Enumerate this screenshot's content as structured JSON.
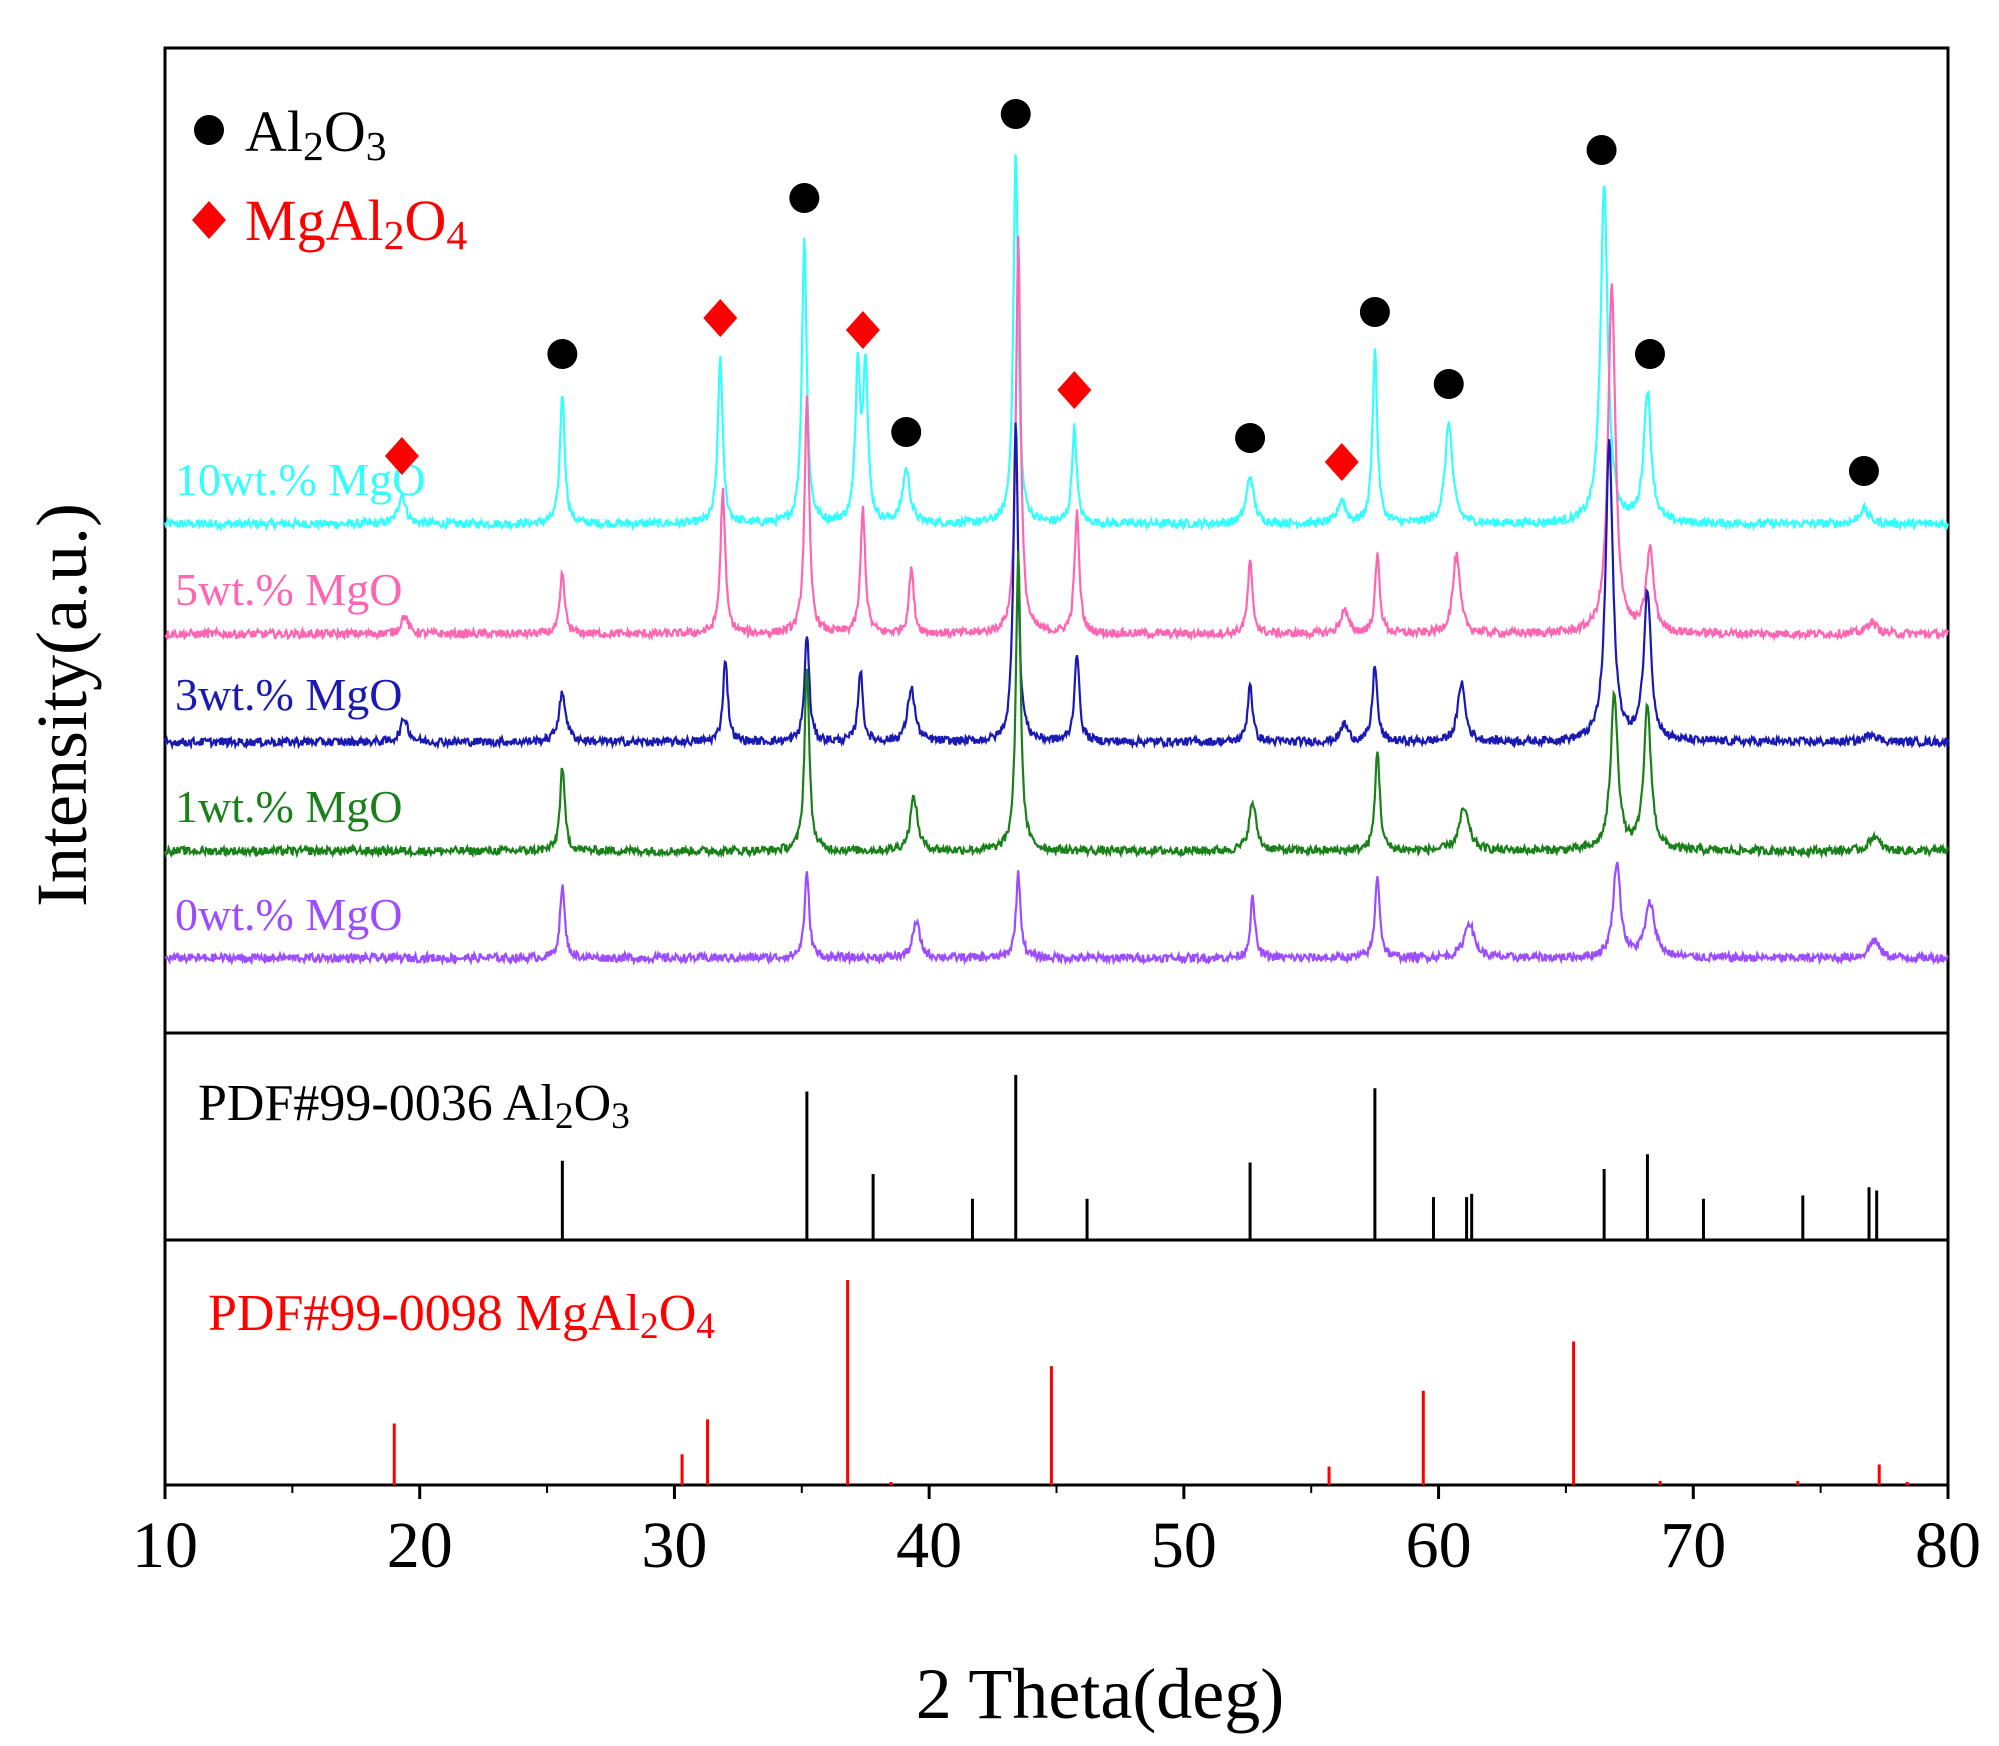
{
  "chart_data": {
    "type": "line",
    "xlabel": "2 Theta(deg)",
    "ylabel": "Intensity(a.u.)",
    "xlim": [
      10,
      80
    ],
    "xticks": [
      10,
      20,
      30,
      40,
      50,
      60,
      70,
      80
    ],
    "legend": [
      {
        "marker": "circle",
        "sub": [
          "Al",
          "2",
          "O",
          "3"
        ],
        "color": "#000000"
      },
      {
        "marker": "diamond",
        "sub": [
          "MgAl",
          "2",
          "O",
          "4"
        ],
        "color": "#ff0000"
      }
    ],
    "series": [
      {
        "name": "10wt.% MgO",
        "color": "#33ffff",
        "peaks": [
          [
            19.3,
            0.5
          ],
          [
            25.6,
            2.2
          ],
          [
            31.8,
            2.8
          ],
          [
            35.1,
            4.8
          ],
          [
            37.2,
            2.6
          ],
          [
            37.5,
            2.6
          ],
          [
            39.1,
            0.9
          ],
          [
            43.4,
            6.2
          ],
          [
            45.7,
            1.6
          ],
          [
            52.6,
            0.8
          ],
          [
            56.2,
            0.4
          ],
          [
            57.5,
            2.9
          ],
          [
            60.4,
            1.7
          ],
          [
            66.5,
            5.6
          ],
          [
            68.2,
            2.2
          ],
          [
            76.7,
            0.25
          ]
        ]
      },
      {
        "name": "5wt.% MgO",
        "color": "#ff66b2",
        "peaks": [
          [
            19.4,
            0.3
          ],
          [
            25.6,
            1.0
          ],
          [
            31.9,
            2.4
          ],
          [
            35.2,
            3.9
          ],
          [
            37.4,
            2.1
          ],
          [
            39.3,
            1.1
          ],
          [
            43.5,
            6.6
          ],
          [
            45.8,
            2.0
          ],
          [
            52.6,
            1.2
          ],
          [
            56.3,
            0.4
          ],
          [
            57.6,
            1.3
          ],
          [
            60.7,
            1.3
          ],
          [
            66.8,
            5.8
          ],
          [
            68.3,
            1.4
          ],
          [
            77.0,
            0.2
          ]
        ]
      },
      {
        "name": "3wt.% MgO",
        "color": "#1a1ab3",
        "peaks": [
          [
            19.4,
            0.4
          ],
          [
            25.6,
            0.8
          ],
          [
            32.0,
            1.4
          ],
          [
            35.2,
            1.8
          ],
          [
            37.3,
            1.2
          ],
          [
            39.3,
            0.9
          ],
          [
            43.4,
            5.4
          ],
          [
            45.8,
            1.5
          ],
          [
            52.6,
            1.0
          ],
          [
            56.3,
            0.3
          ],
          [
            57.5,
            1.3
          ],
          [
            60.9,
            1.0
          ],
          [
            66.7,
            5.0
          ],
          [
            68.2,
            2.5
          ],
          [
            77.0,
            0.15
          ]
        ]
      },
      {
        "name": "1wt.% MgO",
        "color": "#1a801a",
        "peaks": [
          [
            25.6,
            1.4
          ],
          [
            35.2,
            3.1
          ],
          [
            39.4,
            0.9
          ],
          [
            43.5,
            5.0
          ],
          [
            52.7,
            0.8
          ],
          [
            57.6,
            1.7
          ],
          [
            61.0,
            0.7
          ],
          [
            66.9,
            2.6
          ],
          [
            68.2,
            2.4
          ],
          [
            77.1,
            0.25
          ]
        ]
      },
      {
        "name": "0wt.% MgO",
        "color": "#9b4dff",
        "peaks": [
          [
            25.6,
            1.2
          ],
          [
            35.2,
            1.4
          ],
          [
            39.5,
            0.6
          ],
          [
            43.5,
            1.4
          ],
          [
            52.7,
            1.0
          ],
          [
            57.6,
            1.4
          ],
          [
            61.2,
            0.6
          ],
          [
            67.0,
            1.6
          ],
          [
            68.3,
            0.9
          ],
          [
            77.1,
            0.3
          ]
        ]
      }
    ],
    "phase_markers": [
      {
        "phase": "MgAl2O4",
        "x": 19.3
      },
      {
        "phase": "Al2O3",
        "x": 25.6
      },
      {
        "phase": "MgAl2O4",
        "x": 31.8
      },
      {
        "phase": "Al2O3",
        "x": 35.1
      },
      {
        "phase": "MgAl2O4",
        "x": 37.4
      },
      {
        "phase": "Al2O3",
        "x": 39.1
      },
      {
        "phase": "Al2O3",
        "x": 43.4
      },
      {
        "phase": "MgAl2O4",
        "x": 45.7
      },
      {
        "phase": "Al2O3",
        "x": 52.6
      },
      {
        "phase": "MgAl2O4",
        "x": 56.2
      },
      {
        "phase": "Al2O3",
        "x": 57.5
      },
      {
        "phase": "Al2O3",
        "x": 60.4
      },
      {
        "phase": "Al2O3",
        "x": 66.4
      },
      {
        "phase": "Al2O3",
        "x": 68.3
      },
      {
        "phase": "Al2O3",
        "x": 76.7
      }
    ],
    "references": [
      {
        "label": "PDF#99-0036",
        "sub": [
          "Al",
          "2",
          "O",
          "3"
        ],
        "color": "#000000",
        "lines": [
          [
            25.6,
            0.48
          ],
          [
            35.2,
            0.9
          ],
          [
            37.8,
            0.4
          ],
          [
            41.7,
            0.25
          ],
          [
            43.4,
            1.0
          ],
          [
            46.2,
            0.25
          ],
          [
            52.6,
            0.47
          ],
          [
            57.5,
            0.92
          ],
          [
            59.8,
            0.26
          ],
          [
            61.1,
            0.26
          ],
          [
            61.3,
            0.28
          ],
          [
            66.5,
            0.43
          ],
          [
            68.2,
            0.52
          ],
          [
            70.4,
            0.25
          ],
          [
            74.3,
            0.27
          ],
          [
            76.9,
            0.32
          ],
          [
            77.2,
            0.3
          ]
        ]
      },
      {
        "label": "PDF#99-0098",
        "sub": [
          "MgAl",
          "2",
          "O",
          "4"
        ],
        "color": "#ff0000",
        "lines": [
          [
            19.0,
            0.3
          ],
          [
            30.3,
            0.15
          ],
          [
            31.3,
            0.32
          ],
          [
            36.8,
            1.0
          ],
          [
            38.5,
            0.01
          ],
          [
            44.8,
            0.58
          ],
          [
            55.7,
            0.09
          ],
          [
            59.4,
            0.46
          ],
          [
            65.3,
            0.7
          ],
          [
            68.7,
            0.02
          ],
          [
            74.1,
            0.02
          ],
          [
            77.3,
            0.1
          ],
          [
            78.4,
            0.01
          ]
        ]
      }
    ]
  }
}
